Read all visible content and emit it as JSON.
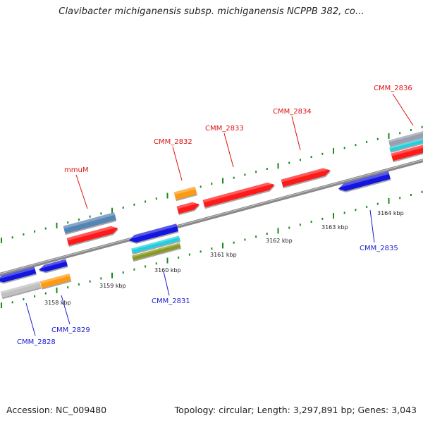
{
  "title": "Clavibacter michiganensis subsp. michiganensis NCPPB 382, co...",
  "accession": "Accession: NC_009480",
  "topology": "Topology: circular; Length: 3,297,891 bp; Genes: 3,043",
  "colors": {
    "red": "#ff1a1a",
    "blue": "#1515e0",
    "steel": "#5585b5",
    "orange": "#ff9a10",
    "gray": "#c0c0c0",
    "cyan": "#20d0e0",
    "olive": "#889a20",
    "top_label": "#e01010",
    "bottom_label": "#1a1ad0",
    "tick": "#1a8a1a",
    "backbone": "#888888"
  },
  "scale_labels": [
    "3158 kbp",
    "3159 kbp",
    "3160 kbp",
    "3161 kbp",
    "3162 kbp",
    "3163 kbp",
    "3164 kbp"
  ],
  "gene_labels_top": [
    "mmuM",
    "CMM_2832",
    "CMM_2833",
    "CMM_2834",
    "CMM_2836"
  ],
  "gene_labels_bottom": [
    "CMM_2828",
    "CMM_2829",
    "CMM_2831",
    "CMM_2835"
  ]
}
